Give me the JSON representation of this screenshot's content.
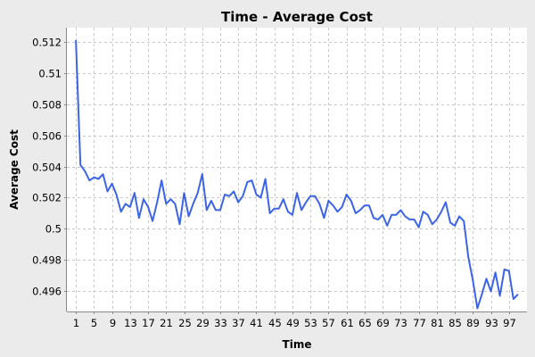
{
  "chart_data": {
    "type": "line",
    "title": "Time - Average Cost",
    "xlabel": "Time",
    "ylabel": "Average Cost",
    "xlim": [
      -1,
      101
    ],
    "ylim": [
      0.4947,
      0.5129
    ],
    "x_ticks": [
      "1",
      "5",
      "9",
      "13",
      "17",
      "21",
      "25",
      "29",
      "33",
      "37",
      "41",
      "45",
      "49",
      "53",
      "57",
      "61",
      "65",
      "69",
      "73",
      "77",
      "81",
      "85",
      "89",
      "93",
      "97"
    ],
    "y_ticks": [
      "0.496",
      "0.498",
      "0.5",
      "0.502",
      "0.504",
      "0.506",
      "0.508",
      "0.51",
      "0.512"
    ],
    "grid": true,
    "colors": {
      "outer_background": "#ebebeb",
      "plot_background": "#ffffff",
      "grid": "#c8c8c8",
      "line": "#3c64e6"
    },
    "series": [
      {
        "x": [
          1,
          2,
          3,
          4,
          5,
          6,
          7,
          8,
          9,
          10,
          11,
          12,
          13,
          14,
          15,
          16,
          17,
          18,
          19,
          20,
          21,
          22,
          23,
          24,
          25,
          26,
          27,
          28,
          29,
          30,
          31,
          32,
          33,
          34,
          35,
          36,
          37,
          38,
          39,
          40,
          41,
          42,
          43,
          44,
          45,
          46,
          47,
          48,
          49,
          50,
          51,
          52,
          53,
          54,
          55,
          56,
          57,
          58,
          59,
          60,
          61,
          62,
          63,
          64,
          65,
          66,
          67,
          68,
          69,
          70,
          71,
          72,
          73,
          74,
          75,
          76,
          77,
          78,
          79,
          80,
          81,
          82,
          83,
          84,
          85,
          86,
          87,
          88,
          89,
          90,
          91,
          92,
          93,
          94,
          95,
          96,
          97,
          98,
          99
        ],
        "values": [
          0.5121,
          0.5041,
          0.5037,
          0.5031,
          0.5033,
          0.5032,
          0.5035,
          0.5024,
          0.5029,
          0.5022,
          0.5011,
          0.5016,
          0.5014,
          0.5023,
          0.5007,
          0.5019,
          0.5014,
          0.5005,
          0.5017,
          0.5031,
          0.5016,
          0.5019,
          0.5016,
          0.5003,
          0.5023,
          0.5008,
          0.5016,
          0.5023,
          0.5035,
          0.5012,
          0.5018,
          0.5012,
          0.5012,
          0.5022,
          0.5021,
          0.5024,
          0.5017,
          0.5021,
          0.503,
          0.5031,
          0.5022,
          0.502,
          0.5032,
          0.501,
          0.5013,
          0.5013,
          0.5019,
          0.5011,
          0.5009,
          0.5023,
          0.5012,
          0.5017,
          0.5021,
          0.5021,
          0.5016,
          0.5007,
          0.5018,
          0.5015,
          0.5011,
          0.5014,
          0.5022,
          0.5018,
          0.501,
          0.5012,
          0.5015,
          0.5015,
          0.5007,
          0.5006,
          0.5009,
          0.5002,
          0.5009,
          0.5009,
          0.5012,
          0.5008,
          0.5006,
          0.5006,
          0.5001,
          0.5011,
          0.5009,
          0.5003,
          0.5006,
          0.5011,
          0.5017,
          0.5004,
          0.5002,
          0.5008,
          0.5005,
          0.4982,
          0.4967,
          0.4949,
          0.4958,
          0.4968,
          0.496,
          0.4972,
          0.4957,
          0.4974,
          0.4973,
          0.4955,
          0.4958
        ]
      }
    ]
  }
}
